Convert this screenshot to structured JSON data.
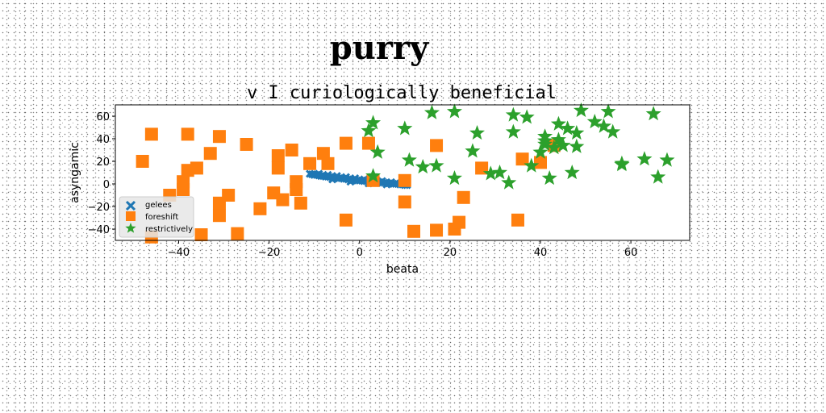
{
  "figure": {
    "suptitle": "purry"
  },
  "chart_data": {
    "type": "scatter",
    "title": "v I curiologically beneficial",
    "xlabel": "beata",
    "ylabel": "asyngamic",
    "xlim": [
      -54,
      73
    ],
    "ylim": [
      -50,
      70
    ],
    "xticks": [
      -40,
      -20,
      0,
      20,
      40,
      60
    ],
    "yticks": [
      -40,
      -20,
      0,
      20,
      40,
      60
    ],
    "xtick_labels": [
      "−40",
      "−20",
      "0",
      "20",
      "40",
      "60"
    ],
    "ytick_labels": [
      "−40",
      "−20",
      "0",
      "20",
      "40",
      "60"
    ],
    "grid": false,
    "legend": {
      "placement": "lower-left"
    },
    "series": [
      {
        "name": "gelees",
        "marker": "x-thick",
        "color": "#1f77b4",
        "points": [
          [
            -11,
            9
          ],
          [
            -10.5,
            8.5
          ],
          [
            -10,
            8
          ],
          [
            -9.5,
            8
          ],
          [
            -9,
            7.5
          ],
          [
            -8.5,
            7
          ],
          [
            -8,
            7
          ],
          [
            -7.5,
            6.5
          ],
          [
            -7,
            6.5
          ],
          [
            -6.5,
            6
          ],
          [
            -6,
            6
          ],
          [
            -5.5,
            5.5
          ],
          [
            -5,
            5.5
          ],
          [
            -4.5,
            5
          ],
          [
            -4,
            5
          ],
          [
            -3.5,
            4.5
          ],
          [
            -3,
            4.5
          ],
          [
            -2.5,
            4
          ],
          [
            -2,
            4
          ],
          [
            -1.5,
            3.5
          ],
          [
            -1,
            3.5
          ],
          [
            -0.5,
            3
          ],
          [
            0,
            3
          ],
          [
            0.5,
            3
          ],
          [
            1,
            2.5
          ],
          [
            1.5,
            2.5
          ],
          [
            2,
            2
          ],
          [
            2.5,
            2
          ],
          [
            3,
            2
          ],
          [
            3.5,
            1.5
          ],
          [
            4,
            1.5
          ],
          [
            4.5,
            1.5
          ],
          [
            5,
            1
          ],
          [
            5.5,
            1
          ],
          [
            6,
            1
          ],
          [
            6.5,
            0.5
          ],
          [
            7,
            0.5
          ],
          [
            7.5,
            0
          ],
          [
            8,
            0
          ],
          [
            8.5,
            0
          ],
          [
            9,
            -0.5
          ],
          [
            9.5,
            -0.5
          ],
          [
            10,
            -1
          ],
          [
            10.5,
            -1
          ],
          [
            -9,
            9
          ],
          [
            -7,
            8
          ],
          [
            -5,
            7
          ],
          [
            -3,
            6
          ],
          [
            -1,
            5
          ],
          [
            1,
            4
          ],
          [
            3,
            3.5
          ],
          [
            5,
            2.5
          ],
          [
            7,
            1.5
          ],
          [
            9,
            0.5
          ],
          [
            -6,
            4
          ],
          [
            -2,
            2
          ],
          [
            2,
            0.5
          ],
          [
            6,
            -0.5
          ]
        ]
      },
      {
        "name": "foreshift",
        "marker": "square",
        "color": "#ff7f0e",
        "points": [
          [
            -48,
            20
          ],
          [
            -46,
            44
          ],
          [
            -46,
            -47
          ],
          [
            -42,
            -10
          ],
          [
            -39,
            2
          ],
          [
            -39,
            -5
          ],
          [
            -38,
            44
          ],
          [
            -38,
            12
          ],
          [
            -36,
            14
          ],
          [
            -35,
            -45
          ],
          [
            -33,
            27
          ],
          [
            -31,
            42
          ],
          [
            -31,
            -17
          ],
          [
            -31,
            -28
          ],
          [
            -29,
            -10
          ],
          [
            -27,
            -44
          ],
          [
            -25,
            35
          ],
          [
            -22,
            -22
          ],
          [
            -19,
            -8
          ],
          [
            -18,
            25
          ],
          [
            -18,
            14
          ],
          [
            -17,
            -14
          ],
          [
            -15,
            30
          ],
          [
            -14,
            2
          ],
          [
            -14,
            -5
          ],
          [
            -13,
            -17
          ],
          [
            -11,
            18
          ],
          [
            -8,
            27
          ],
          [
            -7,
            18
          ],
          [
            -3,
            -32
          ],
          [
            -3,
            36
          ],
          [
            2,
            36
          ],
          [
            3,
            3
          ],
          [
            10,
            3
          ],
          [
            10,
            -16
          ],
          [
            12,
            -42
          ],
          [
            17,
            34
          ],
          [
            17,
            -41
          ],
          [
            21,
            -40
          ],
          [
            22,
            -34
          ],
          [
            23,
            -12
          ],
          [
            27,
            14
          ],
          [
            35,
            -32
          ],
          [
            36,
            22
          ],
          [
            40,
            19
          ],
          [
            43,
            34
          ]
        ]
      },
      {
        "name": "restrictively",
        "marker": "star",
        "color": "#2ca02c",
        "points": [
          [
            2,
            47
          ],
          [
            3,
            54
          ],
          [
            4,
            28
          ],
          [
            3,
            7
          ],
          [
            10,
            49
          ],
          [
            11,
            21
          ],
          [
            14,
            15
          ],
          [
            16,
            63
          ],
          [
            17,
            16
          ],
          [
            21,
            5
          ],
          [
            21,
            64
          ],
          [
            25,
            29
          ],
          [
            26,
            45
          ],
          [
            29,
            9
          ],
          [
            31,
            10
          ],
          [
            33,
            1
          ],
          [
            34,
            46
          ],
          [
            34,
            61
          ],
          [
            37,
            59
          ],
          [
            38,
            16
          ],
          [
            40,
            28
          ],
          [
            41,
            35
          ],
          [
            41,
            42
          ],
          [
            42,
            5
          ],
          [
            43,
            32
          ],
          [
            44,
            39
          ],
          [
            44,
            53
          ],
          [
            46,
            49
          ],
          [
            47,
            10
          ],
          [
            48,
            33
          ],
          [
            48,
            45
          ],
          [
            49,
            65
          ],
          [
            52,
            55
          ],
          [
            54,
            51
          ],
          [
            55,
            64
          ],
          [
            56,
            46
          ],
          [
            58,
            17
          ],
          [
            58,
            18
          ],
          [
            63,
            22
          ],
          [
            65,
            62
          ],
          [
            66,
            6
          ],
          [
            68,
            21
          ],
          [
            41,
            38
          ],
          [
            45,
            34
          ]
        ]
      }
    ]
  }
}
